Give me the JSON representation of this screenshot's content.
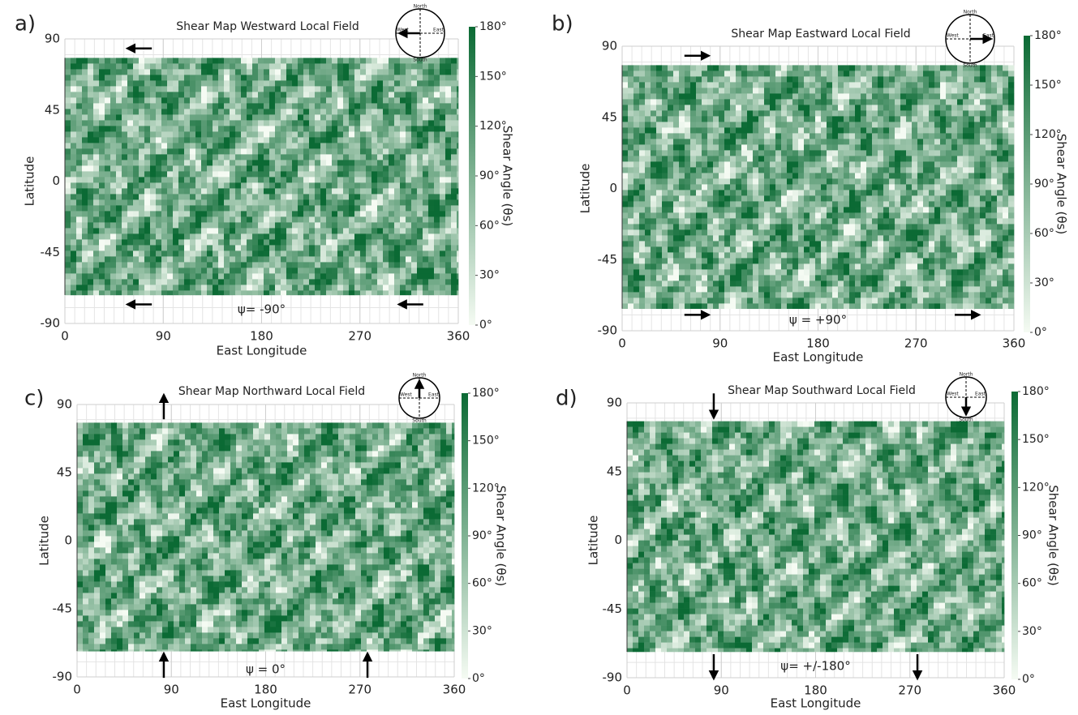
{
  "chart_data": [
    {
      "type": "heatmap",
      "panel_label": "a)",
      "title": "Shear Map Westward Local Field",
      "psi_label": "ψ= -90°",
      "xlabel": "East Longitude",
      "ylabel": "Latitude",
      "colorbar_label": "Shear Angle (θs)",
      "xlim": [
        0,
        360
      ],
      "xticks": [
        0,
        90,
        180,
        270,
        360
      ],
      "ylim": [
        -90,
        90
      ],
      "yticks": [
        90,
        45,
        0,
        -45,
        -90
      ],
      "map_ylim": [
        -72,
        78
      ],
      "clim": [
        0,
        180
      ],
      "cticks": [
        {
          "value": 180,
          "label": "180°"
        },
        {
          "value": 150,
          "label": "150°"
        },
        {
          "value": 120,
          "label": "120°"
        },
        {
          "value": 90,
          "label": "90°"
        },
        {
          "value": 60,
          "label": "60°"
        },
        {
          "value": 30,
          "label": "30°"
        },
        {
          "value": 0,
          "label": "0°"
        }
      ],
      "colors": [
        "#f5fbf3",
        "#0b6a34"
      ],
      "grid": true,
      "field_direction": "west",
      "compass": {
        "north": "North",
        "south": "South",
        "east": "East",
        "west": "West"
      }
    },
    {
      "type": "heatmap",
      "panel_label": "b)",
      "title": "Shear Map Eastward Local Field",
      "psi_label": "ψ = +90°",
      "xlabel": "East Longitude",
      "ylabel": "Latitude",
      "colorbar_label": "Shear Angle (θs)",
      "xlim": [
        0,
        360
      ],
      "xticks": [
        0,
        90,
        180,
        270,
        360
      ],
      "ylim": [
        -90,
        90
      ],
      "yticks": [
        90,
        45,
        0,
        -45,
        -90
      ],
      "map_ylim": [
        -76,
        78
      ],
      "clim": [
        0,
        180
      ],
      "cticks": [
        {
          "value": 180,
          "label": "180°"
        },
        {
          "value": 150,
          "label": "150°"
        },
        {
          "value": 120,
          "label": "120°"
        },
        {
          "value": 90,
          "label": "90°"
        },
        {
          "value": 60,
          "label": "60°"
        },
        {
          "value": 30,
          "label": "30°"
        },
        {
          "value": 0,
          "label": "0°"
        }
      ],
      "colors": [
        "#f5fbf3",
        "#0b6a34"
      ],
      "grid": true,
      "field_direction": "east",
      "compass": {
        "north": "North",
        "south": "South",
        "east": "East",
        "west": "West"
      }
    },
    {
      "type": "heatmap",
      "panel_label": "c)",
      "title": "Shear Map Northward Local Field",
      "psi_label": "ψ = 0°",
      "xlabel": "East Longitude",
      "ylabel": "Latitude",
      "colorbar_label": "Shear Angle (θs)",
      "xlim": [
        0,
        360
      ],
      "xticks": [
        0,
        90,
        180,
        270,
        360
      ],
      "ylim": [
        -90,
        90
      ],
      "yticks": [
        90,
        45,
        0,
        -45,
        -90
      ],
      "map_ylim": [
        -73,
        78
      ],
      "clim": [
        0,
        180
      ],
      "cticks": [
        {
          "value": 180,
          "label": "180°"
        },
        {
          "value": 150,
          "label": "150°"
        },
        {
          "value": 120,
          "label": "120°"
        },
        {
          "value": 90,
          "label": "90°"
        },
        {
          "value": 60,
          "label": "60°"
        },
        {
          "value": 30,
          "label": "30°"
        },
        {
          "value": 0,
          "label": "0°"
        }
      ],
      "colors": [
        "#f5fbf3",
        "#0b6a34"
      ],
      "grid": true,
      "field_direction": "north",
      "compass": {
        "north": "North",
        "south": "South",
        "east": "East",
        "west": "West"
      }
    },
    {
      "type": "heatmap",
      "panel_label": "d)",
      "title": "Shear Map Southward Local Field",
      "psi_label": "ψ= +/-180°",
      "xlabel": "East Longitude",
      "ylabel": "Latitude",
      "colorbar_label": "Shear Angle (θs)",
      "xlim": [
        0,
        360
      ],
      "xticks": [
        0,
        90,
        180,
        270,
        360
      ],
      "ylim": [
        -90,
        90
      ],
      "yticks": [
        90,
        45,
        0,
        -45,
        -90
      ],
      "map_ylim": [
        -73,
        78
      ],
      "clim": [
        0,
        180
      ],
      "cticks": [
        {
          "value": 180,
          "label": "180°"
        },
        {
          "value": 150,
          "label": "150°"
        },
        {
          "value": 120,
          "label": "120°"
        },
        {
          "value": 90,
          "label": "90°"
        },
        {
          "value": 60,
          "label": "60°"
        },
        {
          "value": 30,
          "label": "30°"
        },
        {
          "value": 0,
          "label": "0°"
        }
      ],
      "colors": [
        "#f5fbf3",
        "#0b6a34"
      ],
      "grid": true,
      "field_direction": "south",
      "compass": {
        "north": "North",
        "south": "South",
        "east": "East",
        "west": "West"
      }
    }
  ]
}
